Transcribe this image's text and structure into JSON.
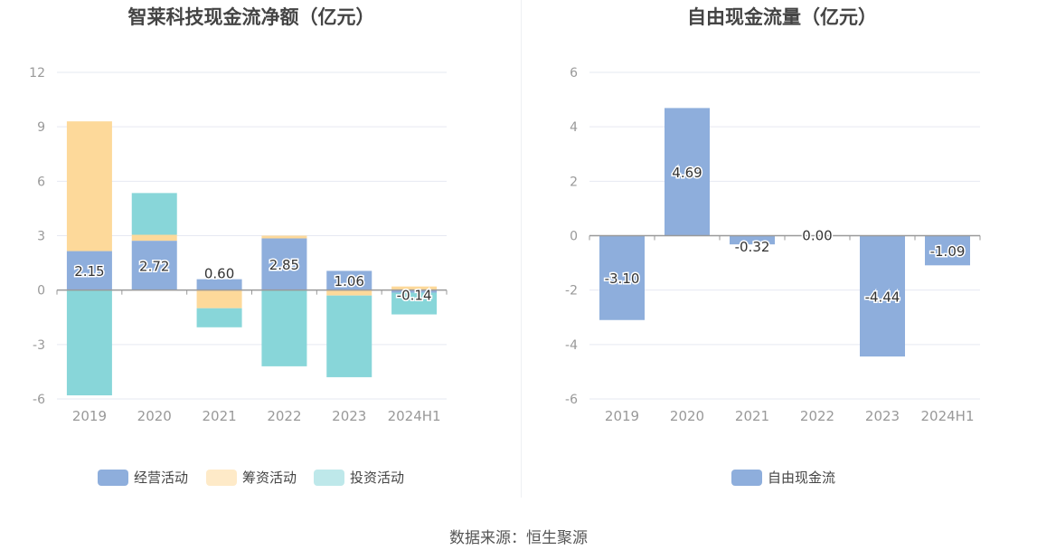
{
  "source": "数据来源：恒生聚源",
  "colors": {
    "operating": "#8eaedc",
    "financing": "#fdd99a",
    "investing": "#88d6d9",
    "free_cash_flow": "#8eaedc",
    "axis_text": "#999999",
    "title_text": "#444444",
    "grid": "#e6e9f2",
    "zero_line": "#999999"
  },
  "chart_data": [
    {
      "type": "bar",
      "stacked": true,
      "title": "智莱科技现金流净额（亿元）",
      "categories": [
        "2019",
        "2020",
        "2021",
        "2022",
        "2023",
        "2024H1"
      ],
      "ylim": [
        -6,
        12
      ],
      "yticks": [
        "12",
        "9",
        "6",
        "3",
        "0",
        "-3",
        "-6"
      ],
      "ytick_values": [
        12,
        9,
        6,
        3,
        0,
        -3,
        -6
      ],
      "grid": true,
      "legend_position": "bottom",
      "series": [
        {
          "name": "经营活动",
          "values": [
            2.15,
            2.72,
            0.6,
            2.85,
            1.06,
            -0.14
          ],
          "labels": [
            "2.15",
            "2.72",
            "0.60",
            "2.85",
            "1.06",
            "-0.14"
          ]
        },
        {
          "name": "筹资活动",
          "values": [
            7.15,
            0.33,
            -1.0,
            0.15,
            -0.3,
            0.2
          ]
        },
        {
          "name": "投资活动",
          "values": [
            -5.8,
            2.3,
            -1.05,
            -4.2,
            -4.5,
            -1.2
          ]
        }
      ]
    },
    {
      "type": "bar",
      "title": "自由现金流量（亿元）",
      "categories": [
        "2019",
        "2020",
        "2021",
        "2022",
        "2023",
        "2024H1"
      ],
      "ylim": [
        -6,
        6
      ],
      "yticks": [
        "6",
        "4",
        "2",
        "0",
        "-2",
        "-4",
        "-6"
      ],
      "ytick_values": [
        6,
        4,
        2,
        0,
        -2,
        -4,
        -6
      ],
      "grid": true,
      "legend_position": "bottom",
      "series": [
        {
          "name": "自由现金流",
          "values": [
            -3.1,
            4.69,
            -0.32,
            0.0,
            -4.44,
            -1.09
          ],
          "labels": [
            "-3.10",
            "4.69",
            "-0.32",
            "0.00",
            "-4.44",
            "-1.09"
          ]
        }
      ]
    }
  ]
}
